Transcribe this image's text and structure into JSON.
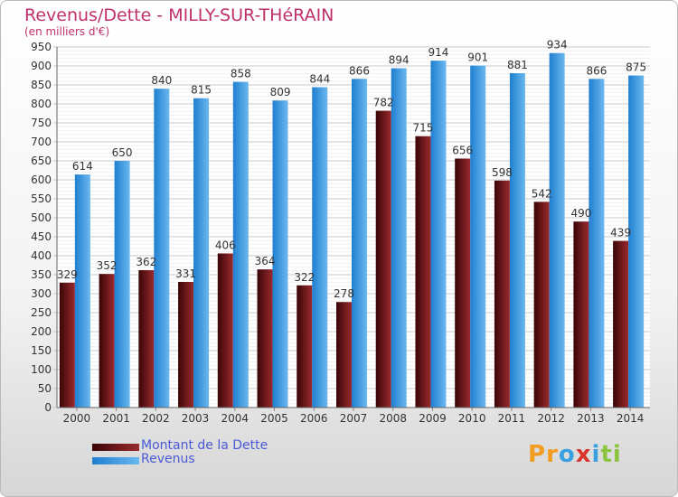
{
  "title": "Revenus/Dette - MILLY-SUR-THéRAIN",
  "subtitle": "(en milliers d'€)",
  "legend": [
    {
      "label": "Montant de la Dette",
      "color": "#7a1a1e"
    },
    {
      "label": "Revenus",
      "color": "#3d9be0"
    }
  ],
  "logo": {
    "letters": [
      "P",
      "r",
      "o",
      "x",
      "i",
      "t",
      "i"
    ],
    "colors": [
      "#f39c22",
      "#f39c22",
      "#3aa0e0",
      "#d9342b",
      "#3aa0e0",
      "#8bc53f",
      "#8bc53f"
    ]
  },
  "chart_data": {
    "type": "bar",
    "categories": [
      "2000",
      "2001",
      "2002",
      "2003",
      "2004",
      "2005",
      "2006",
      "2007",
      "2008",
      "2009",
      "2010",
      "2011",
      "2012",
      "2013",
      "2014"
    ],
    "series": [
      {
        "name": "Montant de la Dette",
        "color": "#7a1a1e",
        "values": [
          329,
          352,
          362,
          331,
          406,
          364,
          322,
          278,
          782,
          715,
          656,
          598,
          542,
          490,
          439
        ]
      },
      {
        "name": "Revenus",
        "color": "#3d9be0",
        "values": [
          614,
          650,
          840,
          815,
          858,
          809,
          844,
          866,
          894,
          914,
          901,
          881,
          934,
          866,
          875
        ]
      }
    ],
    "ylim": [
      0,
      950
    ],
    "yticks": [
      0,
      50,
      100,
      150,
      200,
      250,
      300,
      350,
      400,
      450,
      500,
      550,
      600,
      650,
      700,
      750,
      800,
      850,
      900,
      950
    ],
    "grid": true,
    "legend_position": "bottom-left"
  }
}
